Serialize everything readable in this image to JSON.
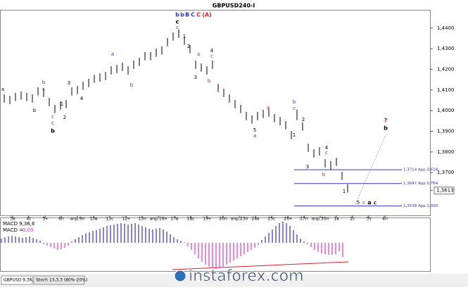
{
  "chart_data": {
    "type": "ohlc",
    "title": "GBPUSD240-I",
    "color": "#000000",
    "xtick_labels": [
      "3в",
      "4с",
      "5ч",
      "6п",
      "апр.9п",
      "10в",
      "11с",
      "12ч",
      "13п",
      "апр.16п",
      "17в",
      "18с",
      "19ч",
      "20п",
      "апр.23п",
      "24в",
      "25с",
      "26ч",
      "27п",
      "апр.30п",
      "1в",
      "2с",
      "3ч",
      "4п"
    ],
    "high": [
      1.4079,
      1.4072,
      1.4086,
      1.4093,
      1.4086,
      1.4079,
      1.4113,
      1.4106,
      1.4062,
      1.4028,
      1.4045,
      1.4052,
      1.4113,
      1.412,
      1.414,
      1.4154,
      1.4174,
      1.4181,
      1.4188,
      1.4215,
      1.4222,
      1.4232,
      1.4215,
      1.4243,
      1.4256,
      1.4284,
      1.4284,
      1.4301,
      1.4311,
      1.4352,
      1.4379,
      1.4393,
      1.4359,
      1.4318,
      1.4243,
      1.4229,
      1.4215,
      1.4243,
      1.413,
      1.4106,
      1.4079,
      1.4052,
      1.4028,
      1.3994,
      1.3977,
      1.3994,
      1.4004,
      1.4011,
      1.3984,
      1.397,
      1.3949,
      1.3902,
      1.4005,
      1.3943,
      1.384,
      1.3813,
      1.3823,
      1.3765,
      1.3755,
      1.3772,
      1.3704,
      1.3643
    ],
    "low": [
      1.4039,
      1.4032,
      1.4046,
      1.4053,
      1.4046,
      1.4039,
      1.4073,
      1.4066,
      1.4022,
      1.3988,
      1.4005,
      1.4012,
      1.4073,
      1.408,
      1.41,
      1.4114,
      1.4134,
      1.4141,
      1.4148,
      1.4175,
      1.4182,
      1.4192,
      1.4175,
      1.4203,
      1.4216,
      1.4244,
      1.4244,
      1.4261,
      1.4271,
      1.4312,
      1.4339,
      1.4353,
      1.4319,
      1.4278,
      1.4203,
      1.4189,
      1.4175,
      1.4203,
      1.409,
      1.4066,
      1.4039,
      1.4012,
      1.3988,
      1.3954,
      1.3937,
      1.3954,
      1.3964,
      1.3971,
      1.3944,
      1.393,
      1.3909,
      1.3862,
      1.3954,
      1.3903,
      1.38,
      1.3773,
      1.3783,
      1.3725,
      1.3715,
      1.3732,
      1.3664,
      1.3603
    ],
    "ylim": [
      1.3496,
      1.4485
    ],
    "yticks": [
      {
        "value": 1.44,
        "label": "1,4400"
      },
      {
        "value": 1.43,
        "label": "1,4300"
      },
      {
        "value": 1.42,
        "label": "1,4200"
      },
      {
        "value": 1.41,
        "label": "1,4100"
      },
      {
        "value": 1.4,
        "label": "1,4000"
      },
      {
        "value": 1.39,
        "label": "1,3900"
      },
      {
        "value": 1.38,
        "label": "1,3800"
      },
      {
        "value": 1.37,
        "label": "1,3700"
      }
    ],
    "current_price": {
      "value": 1.3613,
      "label": "1,3613"
    },
    "levels": [
      {
        "value": 1.3714,
        "label": "1,3714 App 0,618"
      },
      {
        "value": 1.3647,
        "label": "1,3647 App 0,764"
      },
      {
        "value": 1.3538,
        "label": "1,3538 App 1,000"
      }
    ],
    "level_color": "#3333cc",
    "annotations": [
      {
        "text": "b",
        "color": "#3333cc"
      },
      {
        "text": "b",
        "color": "#3333cc"
      },
      {
        "text": "B",
        "color": "#3333cc"
      },
      {
        "text": "C",
        "color": "#3333cc"
      },
      {
        "text": "C",
        "color": "#dd2222"
      },
      {
        "text": "(A)",
        "color": "#dd2222"
      },
      {
        "text": "c",
        "color": "#000000"
      },
      {
        "text": "c",
        "color": "#3333cc"
      },
      {
        "text": "a",
        "color": "#3333cc"
      },
      {
        "text": "b",
        "color": "#3333cc"
      },
      {
        "text": "1",
        "color": "#000000"
      },
      {
        "text": "2",
        "color": "#000000"
      },
      {
        "text": "a",
        "color": "#cc2244"
      },
      {
        "text": "4",
        "color": "#000000"
      },
      {
        "text": "c",
        "color": "#cc2244"
      },
      {
        "text": "3",
        "color": "#000000"
      },
      {
        "text": "b",
        "color": "#cc2244"
      },
      {
        "text": "3",
        "color": "#000000"
      },
      {
        "text": "4",
        "color": "#000000"
      },
      {
        "text": "1",
        "color": "#000000"
      },
      {
        "text": "2",
        "color": "#000000"
      },
      {
        "text": "a",
        "color": "#000000"
      },
      {
        "text": "b",
        "color": "#000000"
      },
      {
        "text": "b",
        "color": "#3333cc"
      },
      {
        "text": "c",
        "color": "#3333cc"
      },
      {
        "text": "c",
        "color": "#3333cc"
      },
      {
        "text": "c",
        "color": "#3333cc"
      },
      {
        "text": "b",
        "color": "#000000"
      },
      {
        "text": "5",
        "color": "#000000"
      },
      {
        "text": "a",
        "color": "#3333cc"
      },
      {
        "text": "a",
        "color": "#cc2244"
      },
      {
        "text": "b",
        "color": "#3333cc"
      },
      {
        "text": "c",
        "color": "#3333cc"
      },
      {
        "text": "1",
        "color": "#000000"
      },
      {
        "text": "2",
        "color": "#000000"
      },
      {
        "text": "3",
        "color": "#000000"
      },
      {
        "text": "4",
        "color": "#000000"
      },
      {
        "text": "c",
        "color": "#cc2244"
      },
      {
        "text": "b",
        "color": "#cc2244"
      },
      {
        "text": "1",
        "color": "#000000"
      },
      {
        "text": "5",
        "color": "#000000"
      },
      {
        "text": "c",
        "color": "#3333cc"
      },
      {
        "text": "a",
        "color": "#000000"
      },
      {
        "text": "c",
        "color": "#3333cc"
      },
      {
        "text": "?",
        "color": "#8800aa"
      },
      {
        "text": "b",
        "color": "#000000"
      }
    ],
    "macd": {
      "name": "MACD 9,36,6",
      "value_name": "MACD =",
      "value_label": "0,00",
      "positive_color": "#3333cc",
      "negative_color": "#ee33cc",
      "ylim": [
        -0.004,
        0.0035
      ],
      "values": [
        0.0006,
        0.0008,
        0.0009,
        0.001,
        0.0009,
        0.0008,
        0.0007,
        0.0008,
        0.0009,
        0.0007,
        0.0005,
        0.0003,
        -0.0002,
        -0.0004,
        -0.0006,
        -0.0008,
        -0.001,
        -0.0009,
        -0.0007,
        -0.0004,
        0.0002,
        0.0005,
        0.0008,
        0.0011,
        0.0013,
        0.0015,
        0.0017,
        0.0018,
        0.002,
        0.0022,
        0.0024,
        0.0025,
        0.0026,
        0.0027,
        0.0028,
        0.0027,
        0.0026,
        0.0027,
        0.0028,
        0.0026,
        0.0024,
        0.0022,
        0.002,
        0.0019,
        0.002,
        0.0021,
        0.0019,
        0.0016,
        0.0012,
        0.0008,
        0.0005,
        0.0003,
        0.0001,
        -0.0005,
        -0.001,
        -0.0016,
        -0.0022,
        -0.0027,
        -0.0031,
        -0.0034,
        -0.0036,
        -0.0037,
        -0.0036,
        -0.0034,
        -0.0031,
        -0.0028,
        -0.0025,
        -0.0022,
        -0.0019,
        -0.0016,
        -0.0013,
        -0.001,
        -0.0007,
        -0.0003,
        0.0004,
        0.0009,
        0.0014,
        0.0019,
        0.0024,
        0.0028,
        0.003,
        0.0028,
        0.0024,
        0.0018,
        0.0012,
        0.0006,
        0.0002,
        -0.0002,
        -0.0006,
        -0.001,
        -0.0013,
        -0.0015,
        -0.0016,
        -0.0017,
        -0.0017,
        -0.0016,
        -0.0012,
        -0.002
      ]
    },
    "tabs": [
      "GBPUSD 9,36,6",
      "Stoch 13,3,3 (80%-20%)"
    ],
    "watermark": "instaforex.com"
  }
}
